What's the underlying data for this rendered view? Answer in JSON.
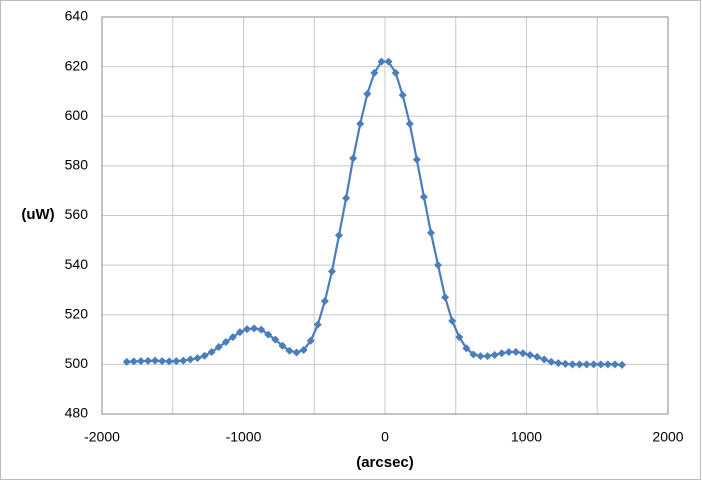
{
  "chart_data": {
    "type": "line",
    "xlabel": "(arcsec)",
    "ylabel": "(uW)",
    "x": [
      -1825,
      -1775,
      -1725,
      -1675,
      -1625,
      -1575,
      -1525,
      -1475,
      -1425,
      -1375,
      -1325,
      -1275,
      -1225,
      -1175,
      -1125,
      -1075,
      -1025,
      -975,
      -925,
      -875,
      -825,
      -775,
      -725,
      -675,
      -625,
      -575,
      -525,
      -475,
      -425,
      -375,
      -325,
      -275,
      -225,
      -175,
      -125,
      -75,
      -25,
      25,
      75,
      125,
      175,
      225,
      275,
      325,
      375,
      425,
      475,
      525,
      575,
      625,
      675,
      725,
      775,
      825,
      875,
      925,
      975,
      1025,
      1075,
      1125,
      1175,
      1225,
      1275,
      1325,
      1375,
      1425,
      1475,
      1525,
      1575,
      1625,
      1675
    ],
    "series": [
      {
        "color": "#4a7ebb",
        "values": [
          501,
          501.2,
          501.3,
          501.4,
          501.5,
          501.3,
          501.2,
          501.3,
          501.5,
          502,
          502.5,
          503.5,
          505,
          507,
          509,
          511,
          513,
          514.2,
          514.5,
          514,
          512,
          510,
          507.5,
          505.5,
          504.8,
          505.8,
          509.5,
          516,
          525.5,
          537.5,
          552,
          567,
          583,
          597,
          609,
          617.5,
          622,
          622,
          617.5,
          608.5,
          597,
          582.5,
          567.5,
          553,
          540,
          527,
          517.5,
          511,
          506.5,
          504,
          503.3,
          503.3,
          503.8,
          504.5,
          505,
          505,
          504.5,
          503.8,
          503,
          502,
          501,
          500.5,
          500.2,
          500,
          500,
          500,
          500,
          500,
          500,
          500,
          499.8
        ]
      }
    ],
    "xlim": [
      -2000,
      2000
    ],
    "xticks": [
      -2000,
      -1000,
      0,
      1000,
      2000
    ],
    "xgridlines": [
      -2000,
      -1500,
      -1000,
      -500,
      0,
      500,
      1000,
      1500,
      2000
    ],
    "ylim": [
      480,
      640
    ],
    "yticks": [
      480,
      500,
      520,
      540,
      560,
      580,
      600,
      620,
      640
    ],
    "grid": true,
    "marker": "diamond"
  }
}
